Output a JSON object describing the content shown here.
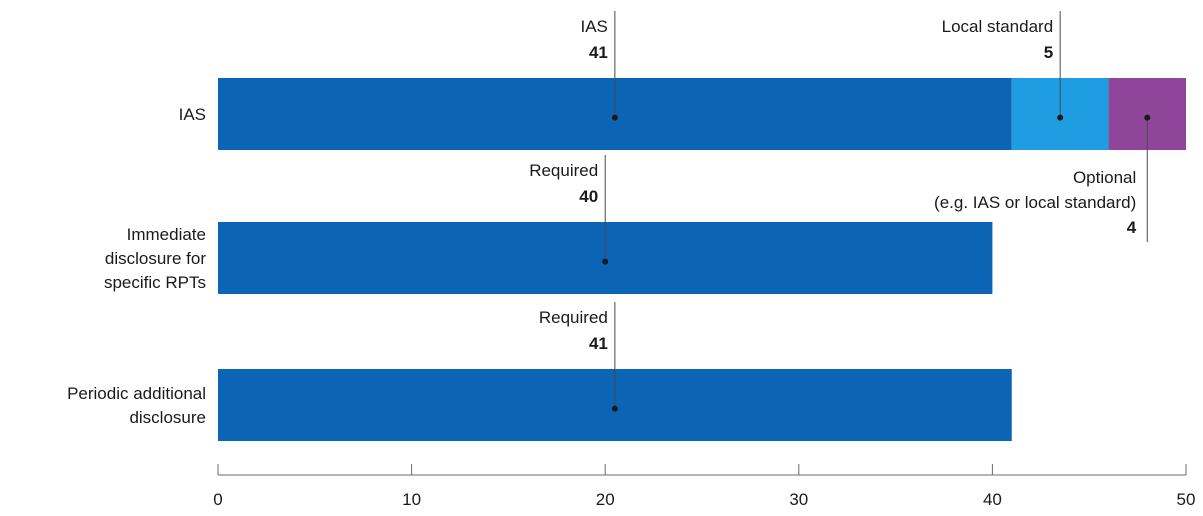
{
  "chart_data": {
    "type": "bar",
    "orientation": "horizontal",
    "stacked": true,
    "title": "",
    "xlabel": "",
    "ylabel": "",
    "xlim": [
      0,
      50
    ],
    "xticks": [
      0,
      10,
      20,
      30,
      40,
      50
    ],
    "grid": false,
    "legend": "none",
    "categories": [
      {
        "lines": [
          "IAS"
        ]
      },
      {
        "lines": [
          "Immediate",
          "disclosure for",
          "specific RPTs"
        ]
      },
      {
        "lines": [
          "Periodic additional",
          "disclosure"
        ]
      }
    ],
    "bars": [
      {
        "category": 0,
        "segments": [
          {
            "label": "IAS",
            "value": 41,
            "color": "#0b64b4"
          },
          {
            "label": "Local standard",
            "value": 5,
            "color": "#1f9de3"
          },
          {
            "label": "Optional (e.g. IAS or local standard)",
            "value": 4,
            "color": "#8f4599"
          }
        ]
      },
      {
        "category": 1,
        "segments": [
          {
            "label": "Required",
            "value": 40,
            "color": "#0b64b4"
          }
        ]
      },
      {
        "category": 2,
        "segments": [
          {
            "label": "Required",
            "value": 41,
            "color": "#0b64b4"
          }
        ]
      }
    ],
    "annotations": [
      {
        "bar": 0,
        "segment": 0,
        "name_lines": [
          "IAS"
        ],
        "value": "41",
        "position": "above"
      },
      {
        "bar": 0,
        "segment": 1,
        "name_lines": [
          "Local standard"
        ],
        "value": "5",
        "position": "above"
      },
      {
        "bar": 0,
        "segment": 2,
        "name_lines": [
          "Optional",
          "(e.g. IAS or local standard)"
        ],
        "value": "4",
        "position": "below"
      },
      {
        "bar": 1,
        "segment": 0,
        "name_lines": [
          "Required"
        ],
        "value": "40",
        "position": "above"
      },
      {
        "bar": 2,
        "segment": 0,
        "name_lines": [
          "Required"
        ],
        "value": "41",
        "position": "above"
      }
    ]
  }
}
